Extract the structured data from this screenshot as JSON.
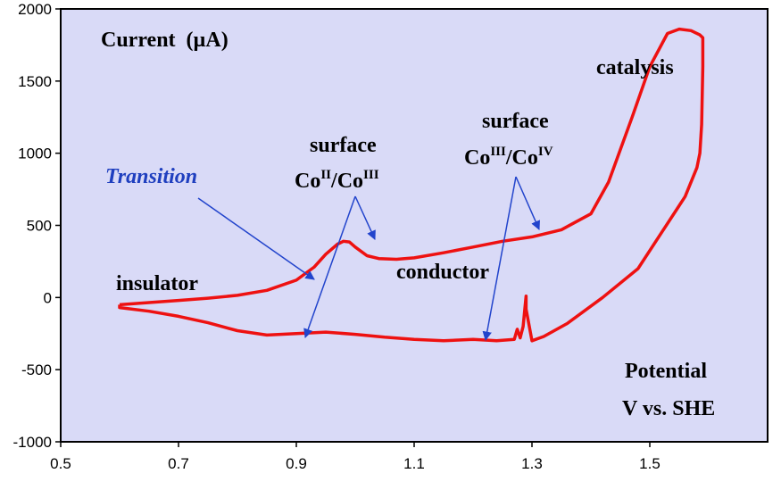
{
  "chart_data": {
    "type": "line",
    "xlim": [
      0.5,
      1.7
    ],
    "ylim": [
      -1000,
      2000
    ],
    "x_ticks": [
      "0.5",
      "0.7",
      "0.9",
      "1.1",
      "1.3",
      "1.5"
    ],
    "y_ticks": [
      "2000",
      "1500",
      "1000",
      "500",
      "0",
      "-500",
      "-1000"
    ],
    "grid": false,
    "background_color": "#d9daf7",
    "series_color": "#ee1111",
    "arrow_color": "#2244cc",
    "annotations": {
      "current_label": "Current",
      "current_unit": "(µA)",
      "transition": "Transition",
      "surface_1": "surface",
      "co_1a": "Co",
      "co_1a_sup": "II",
      "co_1b": "/Co",
      "co_1b_sup": "III",
      "surface_2": "surface",
      "co_2a": "Co",
      "co_2a_sup": "III",
      "co_2b": "/Co",
      "co_2b_sup": "IV",
      "insulator": "insulator",
      "conductor": "conductor",
      "catalysis": "catalysis",
      "potential": "Potential",
      "potential_unit": "V vs. SHE"
    },
    "series": [
      {
        "points": [
          [
            0.6,
            -50
          ],
          [
            0.65,
            -35
          ],
          [
            0.7,
            -20
          ],
          [
            0.75,
            -5
          ],
          [
            0.8,
            15
          ],
          [
            0.85,
            50
          ],
          [
            0.9,
            120
          ],
          [
            0.93,
            210
          ],
          [
            0.95,
            300
          ],
          [
            0.97,
            370
          ],
          [
            0.98,
            390
          ],
          [
            0.99,
            385
          ],
          [
            1.0,
            350
          ],
          [
            1.02,
            290
          ],
          [
            1.04,
            270
          ],
          [
            1.07,
            265
          ],
          [
            1.1,
            275
          ],
          [
            1.15,
            310
          ],
          [
            1.2,
            350
          ],
          [
            1.25,
            390
          ],
          [
            1.3,
            420
          ],
          [
            1.35,
            470
          ],
          [
            1.4,
            580
          ],
          [
            1.43,
            800
          ],
          [
            1.47,
            1250
          ],
          [
            1.5,
            1600
          ],
          [
            1.53,
            1830
          ],
          [
            1.55,
            1860
          ],
          [
            1.57,
            1850
          ],
          [
            1.585,
            1820
          ],
          [
            1.59,
            1800
          ],
          [
            1.59,
            1600
          ],
          [
            1.588,
            1200
          ],
          [
            1.585,
            1000
          ],
          [
            1.58,
            900
          ],
          [
            1.56,
            700
          ],
          [
            1.52,
            450
          ],
          [
            1.48,
            200
          ],
          [
            1.42,
            0
          ],
          [
            1.36,
            -180
          ],
          [
            1.32,
            -270
          ],
          [
            1.3,
            -300
          ],
          [
            1.29,
            -80
          ],
          [
            1.29,
            10
          ],
          [
            1.285,
            -200
          ],
          [
            1.28,
            -280
          ],
          [
            1.275,
            -220
          ],
          [
            1.27,
            -290
          ],
          [
            1.24,
            -300
          ],
          [
            1.2,
            -290
          ],
          [
            1.15,
            -300
          ],
          [
            1.1,
            -290
          ],
          [
            1.05,
            -275
          ],
          [
            1.0,
            -255
          ],
          [
            0.95,
            -240
          ],
          [
            0.9,
            -250
          ],
          [
            0.85,
            -260
          ],
          [
            0.8,
            -230
          ],
          [
            0.75,
            -175
          ],
          [
            0.7,
            -130
          ],
          [
            0.65,
            -95
          ],
          [
            0.6,
            -70
          ],
          [
            0.6,
            -50
          ]
        ]
      }
    ]
  }
}
